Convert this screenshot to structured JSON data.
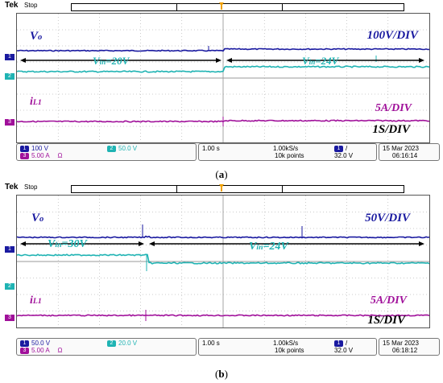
{
  "colors": {
    "ch1": "#1a1aa0",
    "ch2": "#1fb3b3",
    "ch3": "#a0109a",
    "grid": "#9a9a9a",
    "trigger": "#f0a000"
  },
  "panels": [
    {
      "id": "a",
      "brand": "Tek",
      "state": "Stop",
      "labels": {
        "vo_main": "V",
        "vo_sub": "o",
        "il_main": "i",
        "il_sub": "L1",
        "vin_left_main": "V",
        "vin_left_sub": "in",
        "vin_left_value": "=20V",
        "vin_right_main": "V",
        "vin_right_sub": "in",
        "vin_right_value": "=24V",
        "scale_v": "100V/DIV",
        "scale_i": "5A/DIV",
        "scale_t": "1S/DIV"
      },
      "channel_markers": [
        "1",
        "2",
        "3"
      ],
      "status": {
        "ch1_num": "1",
        "ch1_scale": "100 V",
        "ch2_num": "2",
        "ch2_scale": "50.0 V",
        "ch3_num": "3",
        "ch3_scale": "5.00 A",
        "ch3_icon": "Ω",
        "timebase": "1.00 s",
        "sample_rate": "1.00kS/s",
        "record_length": "10k points",
        "trig_ch": "1",
        "trig_slope": "/",
        "trig_level": "32.0 V",
        "date": "15 Mar 2023",
        "time": "06:16:14"
      },
      "caption": "a"
    },
    {
      "id": "b",
      "brand": "Tek",
      "state": "Stop",
      "labels": {
        "vo_main": "V",
        "vo_sub": "o",
        "il_main": "i",
        "il_sub": "L1",
        "vin_left_main": "V",
        "vin_left_sub": "in",
        "vin_left_value": "=30V",
        "vin_right_main": "V",
        "vin_right_sub": "in",
        "vin_right_value": "=24V",
        "scale_v": "50V/DIV",
        "scale_i": "5A/DIV",
        "scale_t": "1S/DIV"
      },
      "channel_markers": [
        "1",
        "2",
        "3"
      ],
      "status": {
        "ch1_num": "1",
        "ch1_scale": "50.0 V",
        "ch2_num": "2",
        "ch2_scale": "20.0 V",
        "ch3_num": "3",
        "ch3_scale": "5.00 A",
        "ch3_icon": "Ω",
        "timebase": "1.00 s",
        "sample_rate": "1.00kS/s",
        "record_length": "10k points",
        "trig_ch": "1",
        "trig_slope": "/",
        "trig_level": "32.0 V",
        "date": "15 Mar 2023",
        "time": "06:18:12"
      },
      "caption": "b"
    }
  ]
}
